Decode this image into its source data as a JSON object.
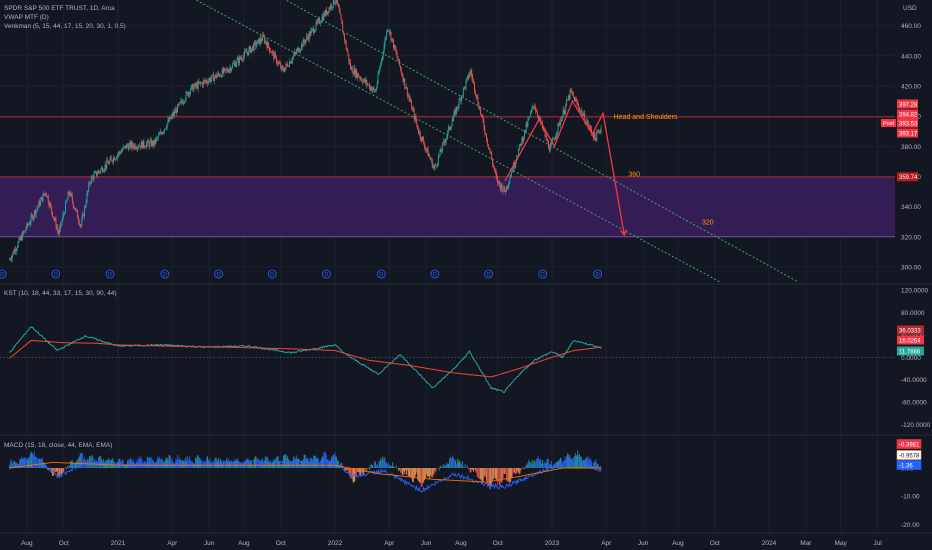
{
  "chart_data": [
    {
      "type": "candlestick",
      "title": "SPDR S&P 500 ETF TRUST, 1D, Arca",
      "indicators": [
        "VWAP MTF (D)",
        "Venkman (5, 15, 44, 17, 15, 20, 30, 1, 0.5)"
      ],
      "y_axis_title": "USD",
      "yticks": [
        300.0,
        320.0,
        340.0,
        360.0,
        380.0,
        400.0,
        420.0,
        440.0,
        460.0
      ],
      "ylim": [
        290,
        477
      ],
      "xticks": [
        "Aug",
        "Oct",
        "2021",
        "Apr",
        "Jun",
        "Aug",
        "Oct",
        "2022",
        "Apr",
        "Jun",
        "Aug",
        "Oct",
        "2023",
        "Apr",
        "Jun",
        "Aug",
        "Oct",
        "2024",
        "Mar",
        "May",
        "Jul"
      ],
      "price_path": [
        {
          "date": "2020-07-01",
          "price": 305
        },
        {
          "date": "2020-09-01",
          "price": 350
        },
        {
          "date": "2020-09-23",
          "price": 322
        },
        {
          "date": "2020-10-10",
          "price": 350
        },
        {
          "date": "2020-10-30",
          "price": 327
        },
        {
          "date": "2020-11-15",
          "price": 358
        },
        {
          "date": "2021-01-15",
          "price": 380
        },
        {
          "date": "2021-03-01",
          "price": 382
        },
        {
          "date": "2021-05-01",
          "price": 418
        },
        {
          "date": "2021-07-01",
          "price": 430
        },
        {
          "date": "2021-09-02",
          "price": 452
        },
        {
          "date": "2021-10-04",
          "price": 430
        },
        {
          "date": "2022-01-03",
          "price": 478
        },
        {
          "date": "2022-01-27",
          "price": 432
        },
        {
          "date": "2022-03-08",
          "price": 416
        },
        {
          "date": "2022-03-29",
          "price": 460
        },
        {
          "date": "2022-05-20",
          "price": 390
        },
        {
          "date": "2022-06-16",
          "price": 365
        },
        {
          "date": "2022-08-16",
          "price": 430
        },
        {
          "date": "2022-09-30",
          "price": 357
        },
        {
          "date": "2022-10-13",
          "price": 350
        },
        {
          "date": "2022-12-01",
          "price": 408
        },
        {
          "date": "2022-12-28",
          "price": 378
        },
        {
          "date": "2023-02-02",
          "price": 416
        },
        {
          "date": "2023-03-13",
          "price": 385
        },
        {
          "date": "2023-03-24",
          "price": 393.53
        }
      ],
      "price_labels": [
        {
          "text": "397.28",
          "color": "#f23645"
        },
        {
          "text": "394.82",
          "color": "#f23645"
        },
        {
          "text": "393.53",
          "color": "#f23645"
        },
        {
          "text": "393.17",
          "color": "#f23645"
        },
        {
          "text": "359.74",
          "color": "#b71c1c"
        }
      ],
      "post_tag": "Post",
      "annotations": {
        "pattern_label": "Head and Shoulders",
        "target_1": "360",
        "target_2": "320"
      },
      "zone": {
        "low": 320,
        "high": 360,
        "color": "#3b1f5e"
      },
      "horizontal_levels": [
        {
          "y": 399.5,
          "color": "#b22833"
        },
        {
          "y": 359.74,
          "color": "#b22833"
        },
        {
          "y": 320,
          "color": "#7b4da8"
        }
      ],
      "channel_lines": [
        {
          "from": {
            "date": "2021-08-01",
            "price": 492
          },
          "to": {
            "date": "2024-02-20",
            "price": 290
          }
        },
        {
          "from": {
            "date": "2021-03-01",
            "price": 492
          },
          "to": {
            "date": "2023-10-10",
            "price": 290
          }
        }
      ],
      "pattern_drawing": [
        {
          "date": "2022-10-13",
          "price": 357
        },
        {
          "date": "2022-12-10",
          "price": 398
        },
        {
          "date": "2023-01-05",
          "price": 380
        },
        {
          "date": "2023-02-05",
          "price": 410
        },
        {
          "date": "2023-03-08",
          "price": 388
        },
        {
          "date": "2023-03-26",
          "price": 402
        },
        {
          "date": "2023-05-01",
          "price": 321
        }
      ],
      "dividend_marker": "D",
      "dividend_dates": [
        "2020-06-19",
        "2020-09-18",
        "2020-12-18",
        "2021-03-19",
        "2021-06-18",
        "2021-09-17",
        "2021-12-17",
        "2022-03-18",
        "2022-06-17",
        "2022-09-16",
        "2022-12-16",
        "2023-03-17"
      ]
    },
    {
      "type": "line",
      "title": "KST (10, 18, 44, 33, 17, 15, 30, 90, 44)",
      "yticks": [
        120.0,
        80.0,
        40.0,
        0.0,
        -40.0,
        -80.0,
        -120.0
      ],
      "ytick_labels": [
        "120.0000",
        "80.0000",
        "40.0000",
        "0.0000",
        "-40.0000",
        "-80.0000",
        "-120.0000"
      ],
      "ylim": [
        -135,
        127
      ],
      "series": [
        {
          "color": "#26a69a",
          "points": [
            [
              2020.5,
              8
            ],
            [
              2020.6,
              55
            ],
            [
              2020.72,
              12
            ],
            [
              2020.85,
              38
            ],
            [
              2021.0,
              20
            ],
            [
              2021.2,
              22
            ],
            [
              2021.4,
              18
            ],
            [
              2021.6,
              20
            ],
            [
              2021.8,
              8
            ],
            [
              2022.0,
              22
            ],
            [
              2022.05,
              5
            ],
            [
              2022.2,
              -30
            ],
            [
              2022.3,
              5
            ],
            [
              2022.45,
              -55
            ],
            [
              2022.55,
              -20
            ],
            [
              2022.62,
              10
            ],
            [
              2022.72,
              -55
            ],
            [
              2022.78,
              -62
            ],
            [
              2022.85,
              -30
            ],
            [
              2022.92,
              -5
            ],
            [
              2023.0,
              10
            ],
            [
              2023.05,
              0
            ],
            [
              2023.1,
              30
            ],
            [
              2023.15,
              25
            ],
            [
              2023.2,
              20
            ],
            [
              2023.23,
              16
            ]
          ]
        },
        {
          "color": "#f44336",
          "points": [
            [
              2020.5,
              -2
            ],
            [
              2020.6,
              30
            ],
            [
              2020.75,
              26
            ],
            [
              2020.9,
              25
            ],
            [
              2021.0,
              22
            ],
            [
              2021.2,
              20
            ],
            [
              2021.5,
              18
            ],
            [
              2021.8,
              15
            ],
            [
              2022.0,
              12
            ],
            [
              2022.15,
              -5
            ],
            [
              2022.35,
              -15
            ],
            [
              2022.55,
              -28
            ],
            [
              2022.72,
              -35
            ],
            [
              2022.85,
              -20
            ],
            [
              2023.0,
              0
            ],
            [
              2023.1,
              12
            ],
            [
              2023.23,
              18
            ]
          ]
        }
      ],
      "value_labels": [
        {
          "text": "36.0333",
          "color": "#b22833"
        },
        {
          "text": "16.0264",
          "color": "#f23645"
        },
        {
          "text": "11.7866",
          "color": "#26a69a"
        }
      ]
    },
    {
      "type": "histogram",
      "title": "MACD (15, 18, close, 44, EMA, EMA)",
      "yticks": [
        0.0,
        -10.0,
        -20.0
      ],
      "ytick_labels": [
        "0.00",
        "-10.00",
        "-20.00"
      ],
      "ylim": [
        -22,
        11
      ],
      "histogram_trend": [
        [
          2020.5,
          2
        ],
        [
          2020.62,
          6
        ],
        [
          2020.72,
          -4
        ],
        [
          2020.82,
          5
        ],
        [
          2021.0,
          3
        ],
        [
          2021.25,
          4
        ],
        [
          2021.5,
          3
        ],
        [
          2021.75,
          4
        ],
        [
          2022.0,
          5
        ],
        [
          2022.08,
          -5
        ],
        [
          2022.22,
          4
        ],
        [
          2022.4,
          -7
        ],
        [
          2022.55,
          5
        ],
        [
          2022.7,
          -7
        ],
        [
          2022.8,
          -5
        ],
        [
          2022.92,
          4
        ],
        [
          2023.0,
          2
        ],
        [
          2023.1,
          6
        ],
        [
          2023.2,
          3
        ],
        [
          2023.23,
          -1
        ]
      ],
      "macd_line": [
        [
          2020.5,
          0
        ],
        [
          2020.62,
          4
        ],
        [
          2020.72,
          -3
        ],
        [
          2020.85,
          2
        ],
        [
          2021.2,
          1
        ],
        [
          2021.6,
          2
        ],
        [
          2022.0,
          2
        ],
        [
          2022.08,
          -3
        ],
        [
          2022.22,
          -1
        ],
        [
          2022.4,
          -8
        ],
        [
          2022.55,
          -2
        ],
        [
          2022.7,
          -6
        ],
        [
          2022.78,
          -7
        ],
        [
          2022.92,
          -2
        ],
        [
          2023.1,
          3
        ],
        [
          2023.23,
          -1
        ]
      ],
      "signal_line": [
        [
          2020.5,
          0
        ],
        [
          2020.7,
          2
        ],
        [
          2021.0,
          1
        ],
        [
          2021.5,
          1
        ],
        [
          2022.0,
          1
        ],
        [
          2022.2,
          -2
        ],
        [
          2022.45,
          -4
        ],
        [
          2022.7,
          -5
        ],
        [
          2022.85,
          -3
        ],
        [
          2023.05,
          0
        ],
        [
          2023.23,
          0
        ]
      ],
      "value_labels": [
        {
          "text": "-0.3981",
          "color": "#f23645"
        },
        {
          "text": "-0.9578",
          "color": "#f7a35c"
        },
        {
          "text": "-1.36",
          "color": "#2962ff"
        }
      ]
    }
  ]
}
